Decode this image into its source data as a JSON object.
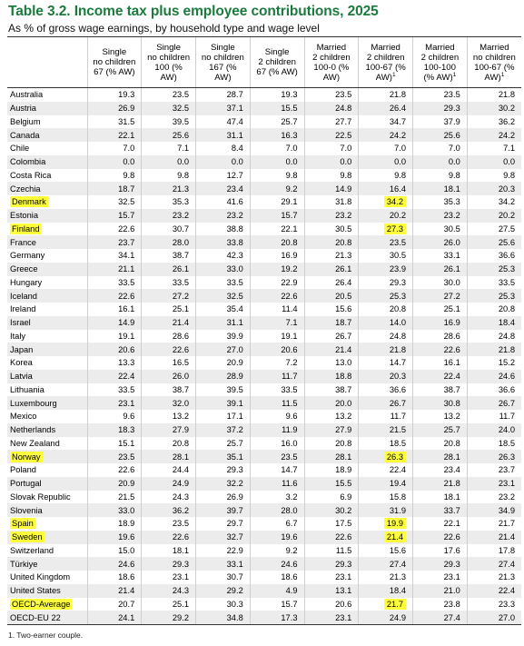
{
  "title": "Table 3.2. Income tax plus employee contributions, 2025",
  "subtitle": "As % of gross wage earnings, by household type and wage level",
  "colors": {
    "title": "#1d7a3e",
    "highlight": "#ffff3c",
    "row_shade": "#ececec"
  },
  "columns": [
    {
      "lines": [
        "Single",
        "no children",
        "67 (% AW)"
      ],
      "footnote_mark": ""
    },
    {
      "lines": [
        "Single",
        "no children",
        "100 (%",
        "AW)"
      ],
      "footnote_mark": ""
    },
    {
      "lines": [
        "Single",
        "no children",
        "167 (%",
        "AW)"
      ],
      "footnote_mark": ""
    },
    {
      "lines": [
        "Single",
        "2 children",
        "67 (% AW)"
      ],
      "footnote_mark": ""
    },
    {
      "lines": [
        "Married",
        "2 children",
        "100-0 (%",
        "AW)"
      ],
      "footnote_mark": ""
    },
    {
      "lines": [
        "Married",
        "2 children",
        "100-67 (%",
        "AW)"
      ],
      "footnote_mark": "1"
    },
    {
      "lines": [
        "Married",
        "2 children",
        "100-100",
        "(% AW)"
      ],
      "footnote_mark": "1"
    },
    {
      "lines": [
        "Married",
        "no children",
        "100-67 (%",
        "AW)"
      ],
      "footnote_mark": "1"
    }
  ],
  "rows": [
    {
      "country": "Australia",
      "values": [
        "19.3",
        "23.5",
        "28.7",
        "19.3",
        "23.5",
        "21.8",
        "23.5",
        "21.8"
      ],
      "highlight_country": false,
      "highlight_col": -1
    },
    {
      "country": "Austria",
      "values": [
        "26.9",
        "32.5",
        "37.1",
        "15.5",
        "24.8",
        "26.4",
        "29.3",
        "30.2"
      ],
      "highlight_country": false,
      "highlight_col": -1
    },
    {
      "country": "Belgium",
      "values": [
        "31.5",
        "39.5",
        "47.4",
        "25.7",
        "27.7",
        "34.7",
        "37.9",
        "36.2"
      ],
      "highlight_country": false,
      "highlight_col": -1
    },
    {
      "country": "Canada",
      "values": [
        "22.1",
        "25.6",
        "31.1",
        "16.3",
        "22.5",
        "24.2",
        "25.6",
        "24.2"
      ],
      "highlight_country": false,
      "highlight_col": -1
    },
    {
      "country": "Chile",
      "values": [
        "7.0",
        "7.1",
        "8.4",
        "7.0",
        "7.0",
        "7.0",
        "7.0",
        "7.1"
      ],
      "highlight_country": false,
      "highlight_col": -1
    },
    {
      "country": "Colombia",
      "values": [
        "0.0",
        "0.0",
        "0.0",
        "0.0",
        "0.0",
        "0.0",
        "0.0",
        "0.0"
      ],
      "highlight_country": false,
      "highlight_col": -1
    },
    {
      "country": "Costa Rica",
      "values": [
        "9.8",
        "9.8",
        "12.7",
        "9.8",
        "9.8",
        "9.8",
        "9.8",
        "9.8"
      ],
      "highlight_country": false,
      "highlight_col": -1
    },
    {
      "country": "Czechia",
      "values": [
        "18.7",
        "21.3",
        "23.4",
        "9.2",
        "14.9",
        "16.4",
        "18.1",
        "20.3"
      ],
      "highlight_country": false,
      "highlight_col": -1
    },
    {
      "country": "Denmark",
      "values": [
        "32.5",
        "35.3",
        "41.6",
        "29.1",
        "31.8",
        "34.2",
        "35.3",
        "34.2"
      ],
      "highlight_country": true,
      "highlight_col": 5
    },
    {
      "country": "Estonia",
      "values": [
        "15.7",
        "23.2",
        "23.2",
        "15.7",
        "23.2",
        "20.2",
        "23.2",
        "20.2"
      ],
      "highlight_country": false,
      "highlight_col": -1
    },
    {
      "country": "Finland",
      "values": [
        "22.6",
        "30.7",
        "38.8",
        "22.1",
        "30.5",
        "27.3",
        "30.5",
        "27.5"
      ],
      "highlight_country": true,
      "highlight_col": 5
    },
    {
      "country": "France",
      "values": [
        "23.7",
        "28.0",
        "33.8",
        "20.8",
        "20.8",
        "23.5",
        "26.0",
        "25.6"
      ],
      "highlight_country": false,
      "highlight_col": -1
    },
    {
      "country": "Germany",
      "values": [
        "34.1",
        "38.7",
        "42.3",
        "16.9",
        "21.3",
        "30.5",
        "33.1",
        "36.6"
      ],
      "highlight_country": false,
      "highlight_col": -1
    },
    {
      "country": "Greece",
      "values": [
        "21.1",
        "26.1",
        "33.0",
        "19.2",
        "26.1",
        "23.9",
        "26.1",
        "25.3"
      ],
      "highlight_country": false,
      "highlight_col": -1
    },
    {
      "country": "Hungary",
      "values": [
        "33.5",
        "33.5",
        "33.5",
        "22.9",
        "26.4",
        "29.3",
        "30.0",
        "33.5"
      ],
      "highlight_country": false,
      "highlight_col": -1
    },
    {
      "country": "Iceland",
      "values": [
        "22.6",
        "27.2",
        "32.5",
        "22.6",
        "20.5",
        "25.3",
        "27.2",
        "25.3"
      ],
      "highlight_country": false,
      "highlight_col": -1
    },
    {
      "country": "Ireland",
      "values": [
        "16.1",
        "25.1",
        "35.4",
        "11.4",
        "15.6",
        "20.8",
        "25.1",
        "20.8"
      ],
      "highlight_country": false,
      "highlight_col": -1
    },
    {
      "country": "Israel",
      "values": [
        "14.9",
        "21.4",
        "31.1",
        "7.1",
        "18.7",
        "14.0",
        "16.9",
        "18.4"
      ],
      "highlight_country": false,
      "highlight_col": -1
    },
    {
      "country": "Italy",
      "values": [
        "19.1",
        "28.6",
        "39.9",
        "19.1",
        "26.7",
        "24.8",
        "28.6",
        "24.8"
      ],
      "highlight_country": false,
      "highlight_col": -1
    },
    {
      "country": "Japan",
      "values": [
        "20.6",
        "22.6",
        "27.0",
        "20.6",
        "21.4",
        "21.8",
        "22.6",
        "21.8"
      ],
      "highlight_country": false,
      "highlight_col": -1
    },
    {
      "country": "Korea",
      "values": [
        "13.3",
        "16.5",
        "20.9",
        "7.2",
        "13.0",
        "14.7",
        "16.1",
        "15.2"
      ],
      "highlight_country": false,
      "highlight_col": -1
    },
    {
      "country": "Latvia",
      "values": [
        "22.4",
        "26.0",
        "28.9",
        "11.7",
        "18.8",
        "20.3",
        "22.4",
        "24.6"
      ],
      "highlight_country": false,
      "highlight_col": -1
    },
    {
      "country": "Lithuania",
      "values": [
        "33.5",
        "38.7",
        "39.5",
        "33.5",
        "38.7",
        "36.6",
        "38.7",
        "36.6"
      ],
      "highlight_country": false,
      "highlight_col": -1
    },
    {
      "country": "Luxembourg",
      "values": [
        "23.1",
        "32.0",
        "39.1",
        "11.5",
        "20.0",
        "26.7",
        "30.8",
        "26.7"
      ],
      "highlight_country": false,
      "highlight_col": -1
    },
    {
      "country": "Mexico",
      "values": [
        "9.6",
        "13.2",
        "17.1",
        "9.6",
        "13.2",
        "11.7",
        "13.2",
        "11.7"
      ],
      "highlight_country": false,
      "highlight_col": -1
    },
    {
      "country": "Netherlands",
      "values": [
        "18.3",
        "27.9",
        "37.2",
        "11.9",
        "27.9",
        "21.5",
        "25.7",
        "24.0"
      ],
      "highlight_country": false,
      "highlight_col": -1
    },
    {
      "country": "New Zealand",
      "values": [
        "15.1",
        "20.8",
        "25.7",
        "16.0",
        "20.8",
        "18.5",
        "20.8",
        "18.5"
      ],
      "highlight_country": false,
      "highlight_col": -1
    },
    {
      "country": "Norway",
      "values": [
        "23.5",
        "28.1",
        "35.1",
        "23.5",
        "28.1",
        "26.3",
        "28.1",
        "26.3"
      ],
      "highlight_country": true,
      "highlight_col": 5
    },
    {
      "country": "Poland",
      "values": [
        "22.6",
        "24.4",
        "29.3",
        "14.7",
        "18.9",
        "22.4",
        "23.4",
        "23.7"
      ],
      "highlight_country": false,
      "highlight_col": -1
    },
    {
      "country": "Portugal",
      "values": [
        "20.9",
        "24.9",
        "32.2",
        "11.6",
        "15.5",
        "19.4",
        "21.8",
        "23.1"
      ],
      "highlight_country": false,
      "highlight_col": -1
    },
    {
      "country": "Slovak Republic",
      "values": [
        "21.5",
        "24.3",
        "26.9",
        "3.2",
        "6.9",
        "15.8",
        "18.1",
        "23.2"
      ],
      "highlight_country": false,
      "highlight_col": -1
    },
    {
      "country": "Slovenia",
      "values": [
        "33.0",
        "36.2",
        "39.7",
        "28.0",
        "30.2",
        "31.9",
        "33.7",
        "34.9"
      ],
      "highlight_country": false,
      "highlight_col": -1
    },
    {
      "country": "Spain",
      "values": [
        "18.9",
        "23.5",
        "29.7",
        "6.7",
        "17.5",
        "19.9",
        "22.1",
        "21.7"
      ],
      "highlight_country": true,
      "highlight_col": 5
    },
    {
      "country": "Sweden",
      "values": [
        "19.6",
        "22.6",
        "32.7",
        "19.6",
        "22.6",
        "21.4",
        "22.6",
        "21.4"
      ],
      "highlight_country": true,
      "highlight_col": 5
    },
    {
      "country": "Switzerland",
      "values": [
        "15.0",
        "18.1",
        "22.9",
        "9.2",
        "11.5",
        "15.6",
        "17.6",
        "17.8"
      ],
      "highlight_country": false,
      "highlight_col": -1
    },
    {
      "country": "Türkiye",
      "values": [
        "24.6",
        "29.3",
        "33.1",
        "24.6",
        "29.3",
        "27.4",
        "29.3",
        "27.4"
      ],
      "highlight_country": false,
      "highlight_col": -1
    },
    {
      "country": "United Kingdom",
      "values": [
        "18.6",
        "23.1",
        "30.7",
        "18.6",
        "23.1",
        "21.3",
        "23.1",
        "21.3"
      ],
      "highlight_country": false,
      "highlight_col": -1
    },
    {
      "country": "United States",
      "values": [
        "21.4",
        "24.3",
        "29.2",
        "4.9",
        "13.1",
        "18.4",
        "21.0",
        "22.4"
      ],
      "highlight_country": false,
      "highlight_col": -1
    },
    {
      "country": "OECD-Average",
      "values": [
        "20.7",
        "25.1",
        "30.3",
        "15.7",
        "20.6",
        "21.7",
        "23.8",
        "23.3"
      ],
      "highlight_country": true,
      "highlight_col": 5
    },
    {
      "country": "OECD-EU 22",
      "values": [
        "24.1",
        "29.2",
        "34.8",
        "17.3",
        "23.1",
        "24.9",
        "27.4",
        "27.0"
      ],
      "highlight_country": false,
      "highlight_col": -1
    }
  ],
  "footnote": "1. Two-earner couple."
}
